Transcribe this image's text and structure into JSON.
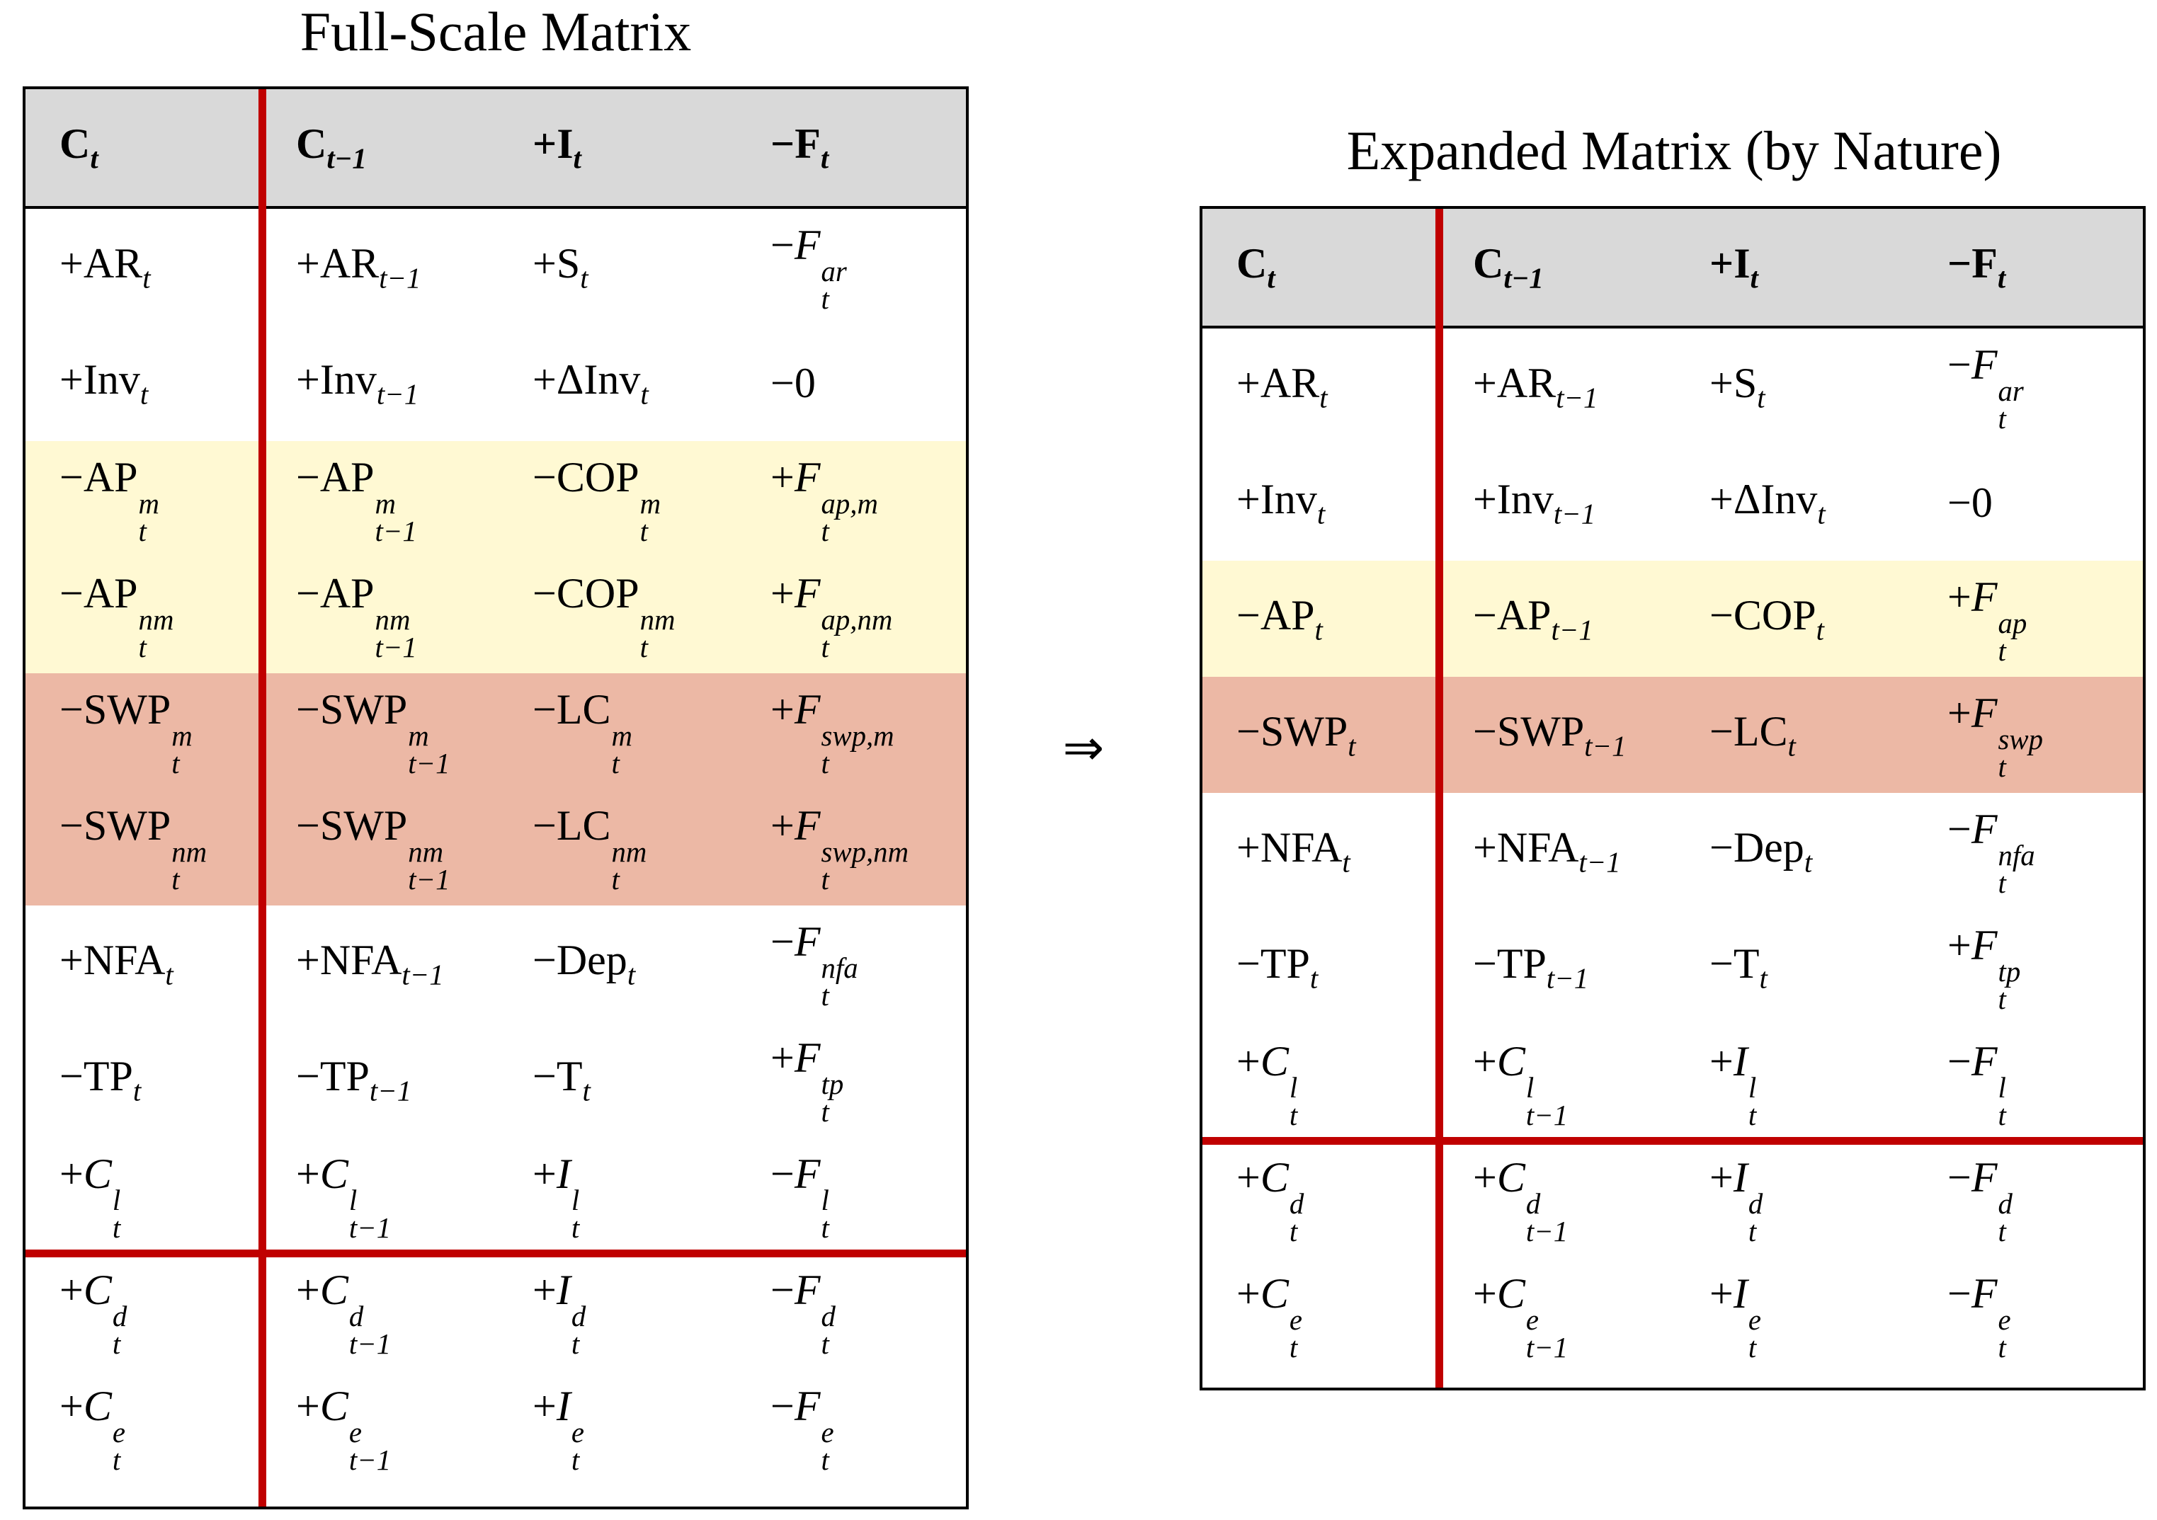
{
  "left_title": "Full-Scale Matrix",
  "right_title": "Expanded Matrix (by Nature)",
  "arrow": "⇒",
  "headers": [
    {
      "b": "C",
      "sub": "t"
    },
    {
      "b": "C",
      "sub": "t−1"
    },
    {
      "b": "+I",
      "sub": "t"
    },
    {
      "b": "−F",
      "sub": "t"
    }
  ],
  "full_rows": [
    {
      "band": "white",
      "cells": [
        {
          "b": "+AR",
          "sub": "t"
        },
        {
          "b": "+AR",
          "sub": "t−1"
        },
        {
          "b": "+S",
          "sub": "t"
        },
        {
          "b": "−",
          "i": "F",
          "sub": "t",
          "sup": "ar"
        }
      ]
    },
    {
      "band": "white",
      "cells": [
        {
          "b": "+Inv",
          "sub": "t"
        },
        {
          "b": "+Inv",
          "sub": "t−1"
        },
        {
          "b": "+ΔInv",
          "sub": "t"
        },
        {
          "b": "−0"
        }
      ]
    },
    {
      "band": "yellow",
      "cells": [
        {
          "b": "−AP",
          "sub": "t",
          "sup": "m"
        },
        {
          "b": "−AP",
          "sub": "t−1",
          "sup": "m"
        },
        {
          "b": "−COP",
          "sub": "t",
          "sup": "m"
        },
        {
          "b": "+",
          "i": "F",
          "sub": "t",
          "sup": "ap,m"
        }
      ]
    },
    {
      "band": "yellow",
      "cells": [
        {
          "b": "−AP",
          "sub": "t",
          "sup": "nm"
        },
        {
          "b": "−AP",
          "sub": "t−1",
          "sup": "nm"
        },
        {
          "b": "−COP",
          "sub": "t",
          "sup": "nm"
        },
        {
          "b": "+",
          "i": "F",
          "sub": "t",
          "sup": "ap,nm"
        }
      ]
    },
    {
      "band": "salmon",
      "cells": [
        {
          "b": "−SWP",
          "sub": "t",
          "sup": "m"
        },
        {
          "b": "−SWP",
          "sub": "t−1",
          "sup": "m"
        },
        {
          "b": "−LC",
          "sub": "t",
          "sup": "m"
        },
        {
          "b": "+",
          "i": "F",
          "sub": "t",
          "sup": "swp,m"
        }
      ]
    },
    {
      "band": "salmon",
      "cells": [
        {
          "b": "−SWP",
          "sub": "t",
          "sup": "nm"
        },
        {
          "b": "−SWP",
          "sub": "t−1",
          "sup": "nm"
        },
        {
          "b": "−LC",
          "sub": "t",
          "sup": "nm"
        },
        {
          "b": "+",
          "i": "F",
          "sub": "t",
          "sup": "swp,nm"
        }
      ]
    },
    {
      "band": "white",
      "cells": [
        {
          "b": "+NFA",
          "sub": "t"
        },
        {
          "b": "+NFA",
          "sub": "t−1"
        },
        {
          "b": "−Dep",
          "sub": "t"
        },
        {
          "b": "−",
          "i": "F",
          "sub": "t",
          "sup": "nfa"
        }
      ]
    },
    {
      "band": "white",
      "cells": [
        {
          "b": "−TP",
          "sub": "t"
        },
        {
          "b": "−TP",
          "sub": "t−1"
        },
        {
          "b": "−T",
          "sub": "t"
        },
        {
          "b": "+",
          "i": "F",
          "sub": "t",
          "sup": "tp"
        }
      ]
    },
    {
      "band": "white",
      "cells": [
        {
          "b": "+",
          "i": "C",
          "sub": "t",
          "sup": "l"
        },
        {
          "b": "+",
          "i": "C",
          "sub": "t−1",
          "sup": "l"
        },
        {
          "b": "+",
          "i": "I",
          "sub": "t",
          "sup": "l"
        },
        {
          "b": "−",
          "i": "F",
          "sub": "t",
          "sup": "l"
        }
      ]
    },
    {
      "band": "white",
      "cells": [
        {
          "b": "+",
          "i": "C",
          "sub": "t",
          "sup": "d"
        },
        {
          "b": "+",
          "i": "C",
          "sub": "t−1",
          "sup": "d"
        },
        {
          "b": "+",
          "i": "I",
          "sub": "t",
          "sup": "d"
        },
        {
          "b": "−",
          "i": "F",
          "sub": "t",
          "sup": "d"
        }
      ]
    },
    {
      "band": "white",
      "cells": [
        {
          "b": "+",
          "i": "C",
          "sub": "t",
          "sup": "e"
        },
        {
          "b": "+",
          "i": "C",
          "sub": "t−1",
          "sup": "e"
        },
        {
          "b": "+",
          "i": "I",
          "sub": "t",
          "sup": "e"
        },
        {
          "b": "−",
          "i": "F",
          "sub": "t",
          "sup": "e"
        }
      ]
    }
  ],
  "expanded_rows": [
    {
      "band": "white",
      "cells": [
        {
          "b": "+AR",
          "sub": "t"
        },
        {
          "b": "+AR",
          "sub": "t−1"
        },
        {
          "b": "+S",
          "sub": "t"
        },
        {
          "b": "−",
          "i": "F",
          "sub": "t",
          "sup": "ar"
        }
      ]
    },
    {
      "band": "white",
      "cells": [
        {
          "b": "+Inv",
          "sub": "t"
        },
        {
          "b": "+Inv",
          "sub": "t−1"
        },
        {
          "b": "+ΔInv",
          "sub": "t"
        },
        {
          "b": "−0"
        }
      ]
    },
    {
      "band": "yellow",
      "cells": [
        {
          "b": "−AP",
          "sub": "t"
        },
        {
          "b": "−AP",
          "sub": "t−1"
        },
        {
          "b": "−COP",
          "sub": "t"
        },
        {
          "b": "+",
          "i": "F",
          "sub": "t",
          "sup": "ap"
        }
      ]
    },
    {
      "band": "salmon",
      "cells": [
        {
          "b": "−SWP",
          "sub": "t"
        },
        {
          "b": "−SWP",
          "sub": "t−1"
        },
        {
          "b": "−LC",
          "sub": "t"
        },
        {
          "b": "+",
          "i": "F",
          "sub": "t",
          "sup": "swp"
        }
      ]
    },
    {
      "band": "white",
      "cells": [
        {
          "b": "+NFA",
          "sub": "t"
        },
        {
          "b": "+NFA",
          "sub": "t−1"
        },
        {
          "b": "−Dep",
          "sub": "t"
        },
        {
          "b": "−",
          "i": "F",
          "sub": "t",
          "sup": "nfa"
        }
      ]
    },
    {
      "band": "white",
      "cells": [
        {
          "b": "−TP",
          "sub": "t"
        },
        {
          "b": "−TP",
          "sub": "t−1"
        },
        {
          "b": "−T",
          "sub": "t"
        },
        {
          "b": "+",
          "i": "F",
          "sub": "t",
          "sup": "tp"
        }
      ]
    },
    {
      "band": "white",
      "cells": [
        {
          "b": "+",
          "i": "C",
          "sub": "t",
          "sup": "l"
        },
        {
          "b": "+",
          "i": "C",
          "sub": "t−1",
          "sup": "l"
        },
        {
          "b": "+",
          "i": "I",
          "sub": "t",
          "sup": "l"
        },
        {
          "b": "−",
          "i": "F",
          "sub": "t",
          "sup": "l"
        }
      ]
    },
    {
      "band": "white",
      "cells": [
        {
          "b": "+",
          "i": "C",
          "sub": "t",
          "sup": "d"
        },
        {
          "b": "+",
          "i": "C",
          "sub": "t−1",
          "sup": "d"
        },
        {
          "b": "+",
          "i": "I",
          "sub": "t",
          "sup": "d"
        },
        {
          "b": "−",
          "i": "F",
          "sub": "t",
          "sup": "d"
        }
      ]
    },
    {
      "band": "white",
      "cells": [
        {
          "b": "+",
          "i": "C",
          "sub": "t",
          "sup": "e"
        },
        {
          "b": "+",
          "i": "C",
          "sub": "t−1",
          "sup": "e"
        },
        {
          "b": "+",
          "i": "I",
          "sub": "t",
          "sup": "e"
        },
        {
          "b": "−",
          "i": "F",
          "sub": "t",
          "sup": "e"
        }
      ]
    }
  ]
}
